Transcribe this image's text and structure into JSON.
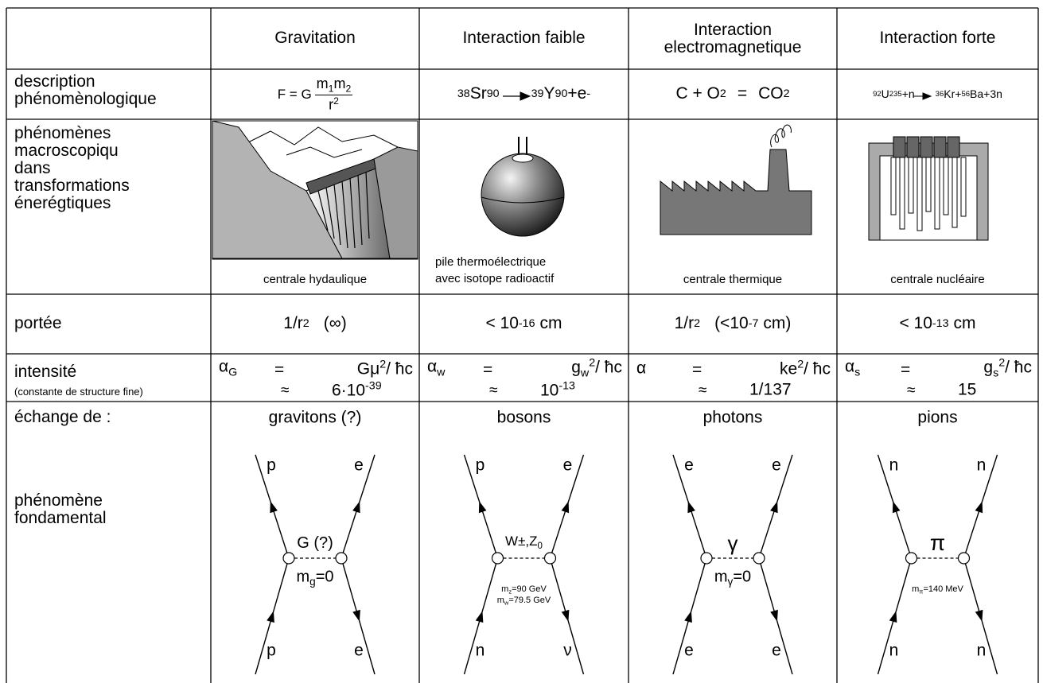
{
  "header": {
    "columns": [
      "Gravitation",
      "Interaction faible",
      "Interaction electromagnetique",
      "Interaction forte"
    ]
  },
  "description": {
    "label": [
      "description",
      "phénomènologique"
    ],
    "cells": [
      [
        "F = G",
        "m",
        "1",
        "m",
        "2",
        "r",
        "2"
      ],
      [
        "38",
        "Sr",
        "90",
        "39",
        "Y",
        "90",
        "+e",
        "-"
      ],
      [
        "C + O",
        "2",
        "=",
        "CO",
        "2"
      ],
      [
        "92",
        "U",
        "235",
        "+n",
        "36",
        "Kr+",
        "56",
        "Ba+3n"
      ]
    ]
  },
  "macroscopic": {
    "label": [
      "phénomènes",
      "macroscopiqu",
      "dans",
      "transformations",
      "énerégtiques"
    ],
    "captions": [
      [
        "centrale hydaulique"
      ],
      [
        "pile thermoélectrique",
        "avec isotope radioactif"
      ],
      [
        "centrale thermique"
      ],
      [
        "centrale nucléaire"
      ]
    ]
  },
  "range": {
    "label": "portée",
    "cells": [
      [
        "1/r",
        "2",
        "(∞)"
      ],
      [
        "< 10",
        "-16",
        "cm"
      ],
      [
        "1/r",
        "2",
        "(<10",
        "-7",
        "cm)"
      ],
      [
        "< 10",
        "-13",
        "cm"
      ]
    ]
  },
  "intensity": {
    "label": "intensité",
    "note": "(constante de structure fine)",
    "cells": [
      {
        "symbol": [
          "α",
          "G"
        ],
        "equals": "=",
        "expression": [
          "Gμ",
          "2",
          "/ ħc"
        ],
        "approx": "≈",
        "value": [
          "6·10",
          "-39"
        ]
      },
      {
        "symbol": [
          "α",
          "w"
        ],
        "equals": "=",
        "expression": [
          "g",
          "w",
          "2",
          "/ ħc"
        ],
        "approx": "≈",
        "value": [
          "10",
          "-13"
        ]
      },
      {
        "symbol": [
          "α"
        ],
        "equals": "=",
        "expression": [
          "ke",
          "2",
          "/ ħc"
        ],
        "approx": "≈",
        "value": [
          "1/137"
        ]
      },
      {
        "symbol": [
          "α",
          "s"
        ],
        "equals": "=",
        "expression": [
          "g",
          "s",
          "2",
          "/ ħc"
        ],
        "approx": "≈",
        "value": [
          "15"
        ]
      }
    ]
  },
  "exchange": {
    "label": "échange de :",
    "sublabel": [
      "phénomène",
      "fondamental"
    ],
    "cells": [
      {
        "particle": "gravitons (?)",
        "top": [
          "p",
          "e"
        ],
        "bottom": [
          "p",
          "e"
        ],
        "mediator": [
          "G (?)"
        ],
        "mass": [
          [
            "m",
            "g",
            "=0"
          ]
        ]
      },
      {
        "particle": "bosons",
        "top": [
          "p",
          "e"
        ],
        "bottom": [
          "n",
          "ν"
        ],
        "mediator": [
          "W±,Z",
          "0"
        ],
        "mass": [
          [
            "m",
            "z",
            "=90 GeV"
          ],
          [
            "m",
            "w",
            "=79.5 GeV"
          ]
        ]
      },
      {
        "particle": "photons",
        "top": [
          "e",
          "e"
        ],
        "bottom": [
          "e",
          "e"
        ],
        "mediator": [
          "γ"
        ],
        "mass": [
          [
            "m",
            "γ",
            "=0"
          ]
        ]
      },
      {
        "particle": "pions",
        "top": [
          "n",
          "n"
        ],
        "bottom": [
          "n",
          "n"
        ],
        "mediator": [
          "π"
        ],
        "mass": [
          [
            "m",
            "π",
            "=140 MeV"
          ]
        ]
      }
    ]
  }
}
